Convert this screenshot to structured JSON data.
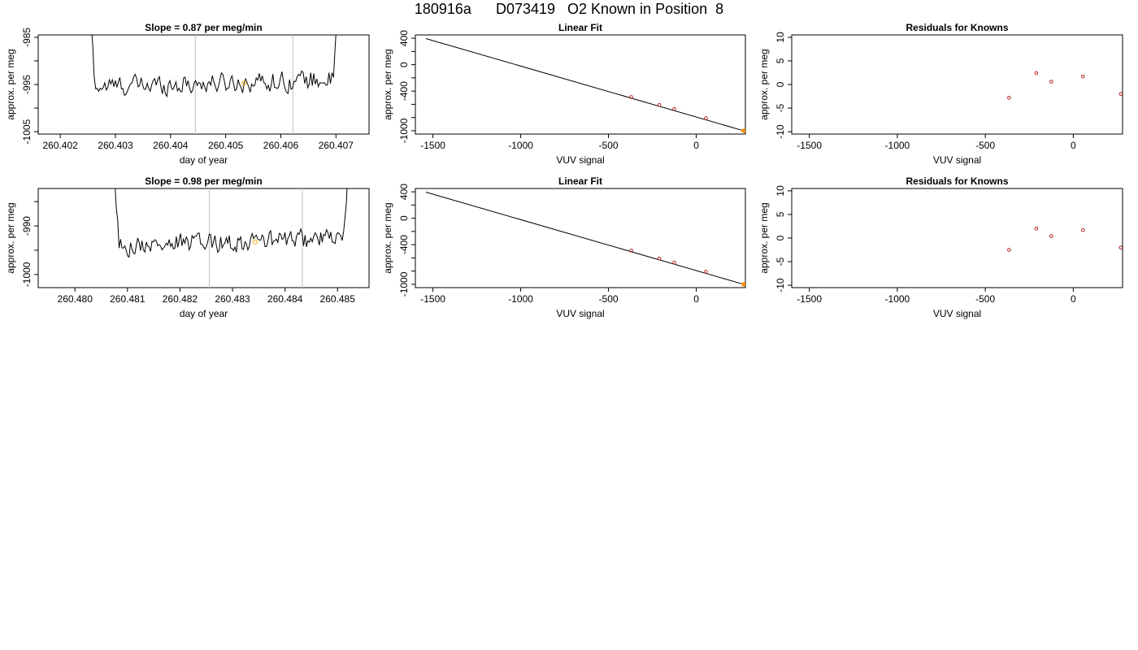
{
  "page": {
    "title": "180916a      D073419   O2 Known in Position  8"
  },
  "chart_data": [
    {
      "type": "line",
      "title": "Slope =  0.87  per meg/min",
      "xlabel": "day of year",
      "ylabel": "approx. per meg",
      "xlim": [
        260.4016,
        260.4076
      ],
      "ylim": [
        -1005.5,
        -984.5
      ],
      "xticks": [
        260.402,
        260.403,
        260.404,
        260.405,
        260.406,
        260.407
      ],
      "xtick_labels": [
        "260.402",
        "260.403",
        "260.404",
        "260.405",
        "260.406",
        "260.407"
      ],
      "yticks": [
        -1005,
        -995,
        -985
      ],
      "ytick_labels": [
        "-1005",
        "-995",
        "-985"
      ],
      "yminor_ticks": [
        -1000,
        -990
      ],
      "vlines": [
        260.40445,
        260.40622
      ],
      "trace_start": 260.40245,
      "trace_end": 260.40712,
      "highlight_point": {
        "x": 260.40533,
        "y": -994.7
      },
      "grid": false,
      "legend": "none",
      "colors": {
        "trace": "#000000",
        "vline": "#c8c8c8",
        "highlight": "#ffa500"
      }
    },
    {
      "type": "line",
      "title": "Linear Fit",
      "xlabel": "VUV signal",
      "ylabel": "approx. per meg",
      "xlim": [
        -1600,
        280
      ],
      "ylim": [
        -1050,
        450
      ],
      "xticks": [
        -1500,
        -1000,
        -500,
        0
      ],
      "xtick_labels": [
        "-1500",
        "-1000",
        "-500",
        "0"
      ],
      "yticks": [
        -1000,
        -400,
        0,
        400
      ],
      "ytick_labels": [
        "-1000",
        "-400",
        "0",
        "400"
      ],
      "yminor_ticks": [
        -800,
        -600,
        -200,
        200
      ],
      "fit_line": {
        "x": [
          -1540,
          270
        ],
        "y": [
          395,
          -1000
        ]
      },
      "points": {
        "x": [
          -370,
          -210,
          -125,
          55,
          270
        ],
        "y": [
          -490,
          -610,
          -670,
          -810,
          -1000
        ]
      },
      "grid": false,
      "legend": "none",
      "colors": {
        "line": "#000000",
        "points": "#b22222",
        "last_point": "#ff8c00"
      }
    },
    {
      "type": "scatter",
      "title": "Residuals for Knowns",
      "xlabel": "VUV signal",
      "ylabel": "approx. per meg",
      "xlim": [
        -1600,
        280
      ],
      "ylim": [
        -10.5,
        10.5
      ],
      "xticks": [
        -1500,
        -1000,
        -500,
        0
      ],
      "xtick_labels": [
        "-1500",
        "-1000",
        "-500",
        "0"
      ],
      "yticks": [
        -10,
        -5,
        0,
        5,
        10
      ],
      "ytick_labels": [
        "-10",
        "-5",
        "0",
        "5",
        "10"
      ],
      "points": {
        "x": [
          -365,
          -210,
          -125,
          55,
          270
        ],
        "y": [
          -2.8,
          2.4,
          0.6,
          1.7,
          -2.0
        ]
      },
      "grid": false,
      "legend": "none",
      "colors": {
        "points": "#b22222"
      }
    },
    {
      "type": "line",
      "title": "Slope =  0.98  per meg/min",
      "xlabel": "day of year",
      "ylabel": "approx. per meg",
      "xlim": [
        260.4793,
        260.4856
      ],
      "ylim": [
        -1002.7,
        -982.3
      ],
      "xticks": [
        260.48,
        260.481,
        260.482,
        260.483,
        260.484,
        260.485
      ],
      "xtick_labels": [
        "260.480",
        "260.481",
        "260.482",
        "260.483",
        "260.484",
        "260.485"
      ],
      "yticks": [
        -1000,
        -990
      ],
      "ytick_labels": [
        "-1000",
        "-990"
      ],
      "yminor_ticks": [
        -995,
        -985
      ],
      "vlines": [
        260.48256,
        260.48433
      ],
      "trace_start": 260.48065,
      "trace_end": 260.48528,
      "highlight_point": {
        "x": 260.48343,
        "y": -993.3
      },
      "grid": false,
      "legend": "none",
      "colors": {
        "trace": "#000000",
        "vline": "#c8c8c8",
        "highlight": "#ffa500"
      }
    },
    {
      "type": "line",
      "title": "Linear Fit",
      "xlabel": "VUV signal",
      "ylabel": "approx. per meg",
      "xlim": [
        -1600,
        280
      ],
      "ylim": [
        -1050,
        450
      ],
      "xticks": [
        -1500,
        -1000,
        -500,
        0
      ],
      "xtick_labels": [
        "-1500",
        "-1000",
        "-500",
        "0"
      ],
      "yticks": [
        -1000,
        -400,
        0,
        400
      ],
      "ytick_labels": [
        "-1000",
        "-400",
        "0",
        "400"
      ],
      "yminor_ticks": [
        -800,
        -600,
        -200,
        200
      ],
      "fit_line": {
        "x": [
          -1540,
          270
        ],
        "y": [
          395,
          -1000
        ]
      },
      "points": {
        "x": [
          -370,
          -210,
          -125,
          55,
          270
        ],
        "y": [
          -490,
          -610,
          -670,
          -810,
          -1000
        ]
      },
      "grid": false,
      "legend": "none",
      "colors": {
        "line": "#000000",
        "points": "#b22222",
        "last_point": "#ff8c00"
      }
    },
    {
      "type": "scatter",
      "title": "Residuals for Knowns",
      "xlabel": "VUV signal",
      "ylabel": "approx. per meg",
      "xlim": [
        -1600,
        280
      ],
      "ylim": [
        -10.5,
        10.5
      ],
      "xticks": [
        -1500,
        -1000,
        -500,
        0
      ],
      "xtick_labels": [
        "-1500",
        "-1000",
        "-500",
        "0"
      ],
      "yticks": [
        -10,
        -5,
        0,
        5,
        10
      ],
      "ytick_labels": [
        "-10",
        "-5",
        "0",
        "5",
        "10"
      ],
      "points": {
        "x": [
          -365,
          -210,
          -125,
          55,
          270
        ],
        "y": [
          -2.5,
          2.0,
          0.4,
          1.7,
          -2.0
        ]
      },
      "grid": false,
      "legend": "none",
      "colors": {
        "points": "#b22222"
      }
    }
  ]
}
